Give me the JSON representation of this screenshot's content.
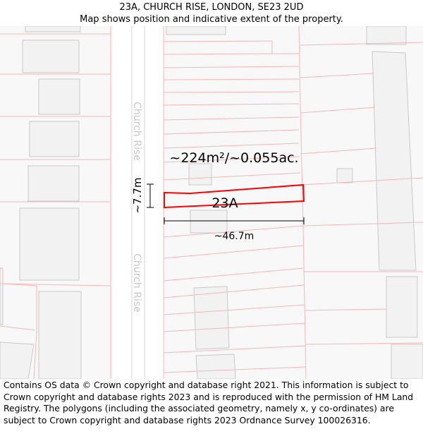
{
  "header": {
    "title": "23A, CHURCH RISE, LONDON, SE23 2UD",
    "subtitle": "Map shows position and indicative extent of the property."
  },
  "map": {
    "street_label_top": "Church Rise",
    "street_label_bottom": "Church Rise",
    "area_label": "~224m²/~0.055ac.",
    "plot_label": "23A",
    "width_label": "~46.7m",
    "height_label": "~7.7m",
    "colors": {
      "boundary_line": "#f4b8b8",
      "building_fill": "#f2f2f2",
      "building_stroke": "#c9c9c9",
      "plot_outline": "#ff0000",
      "street_text": "#c8c8c8"
    }
  },
  "footer": {
    "copyright": "Contains OS data © Crown copyright and database right 2021. This information is subject to Crown copyright and database rights 2023 and is reproduced with the permission of HM Land Registry. The polygons (including the associated geometry, namely x, y co-ordinates) are subject to Crown copyright and database rights 2023 Ordnance Survey 100026316."
  }
}
